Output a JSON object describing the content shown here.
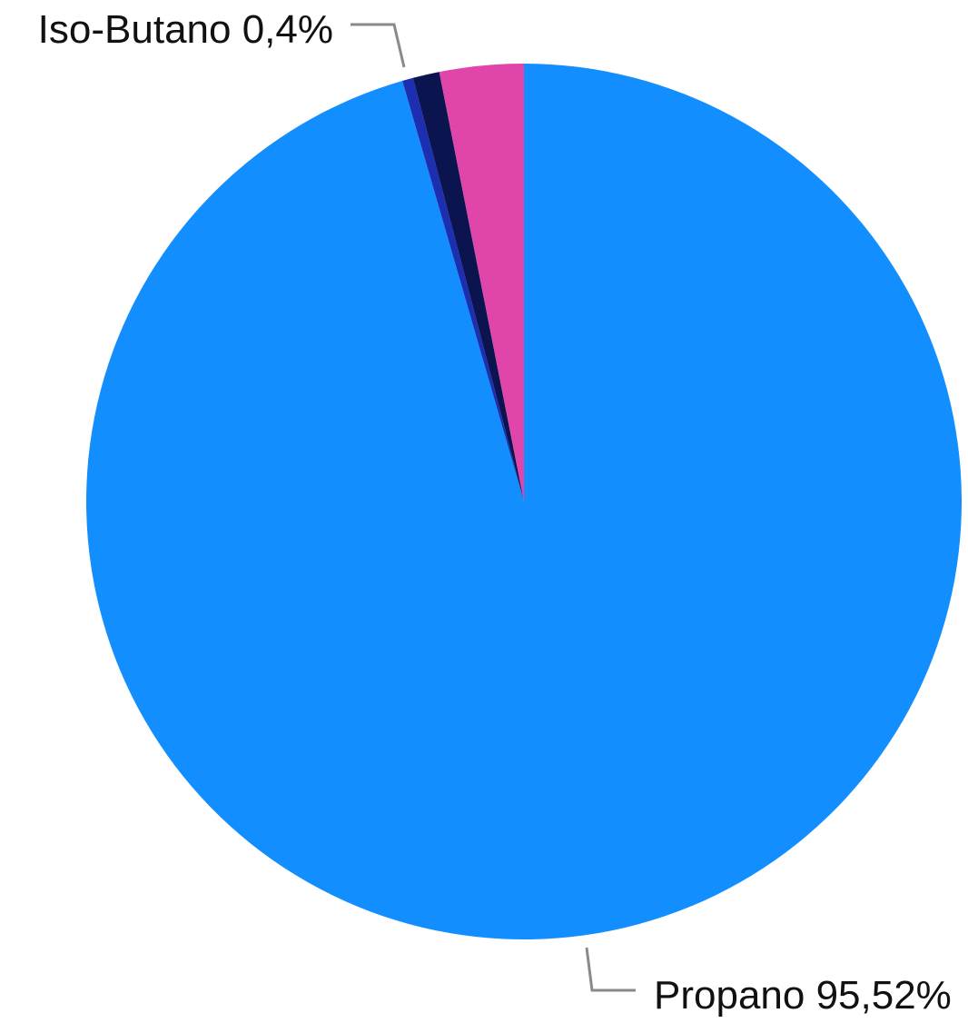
{
  "chart_data": {
    "type": "pie",
    "slices": [
      {
        "label": "Propano",
        "value": 95.52,
        "display": "95,52%",
        "color": "#138EFF"
      },
      {
        "label": "Iso-Butano",
        "value": 0.4,
        "display": "0,4%",
        "color": "#1B2FB0"
      },
      {
        "label": "",
        "value": 0.98,
        "display": "",
        "color": "#0C1450"
      },
      {
        "label": "",
        "value": 3.1,
        "display": "",
        "color": "#E046AA"
      }
    ],
    "labels": {
      "propano": "Propano 95,52%",
      "iso_butano": "Iso-Butano 0,4%"
    }
  }
}
